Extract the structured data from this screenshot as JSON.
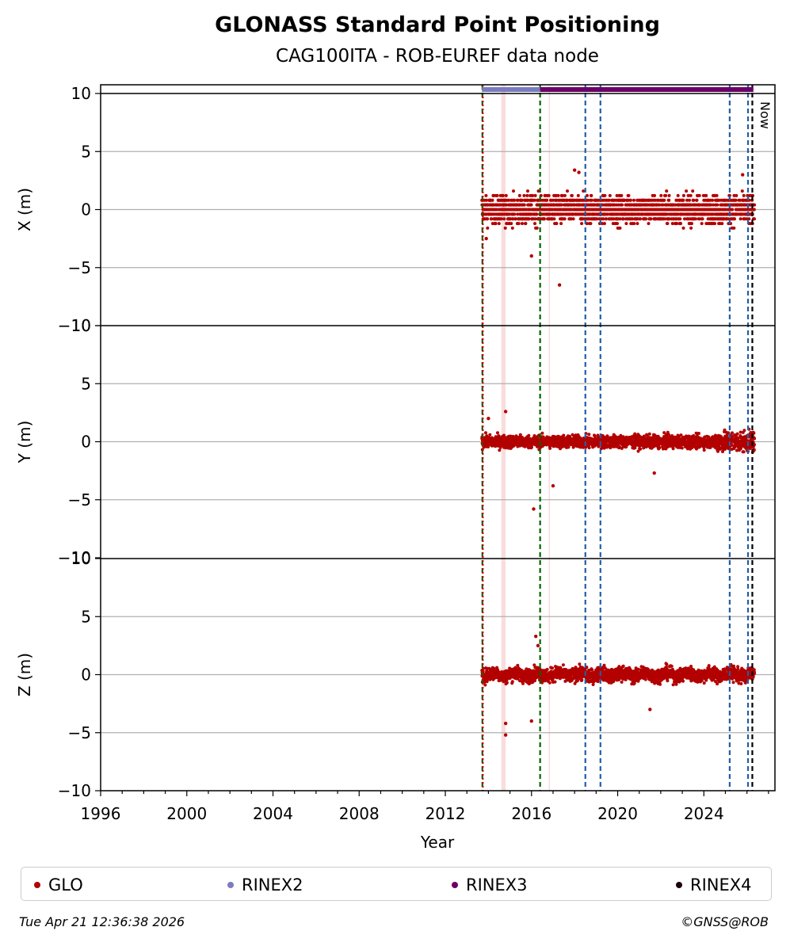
{
  "title": "GLONASS Standard Point Positioning",
  "subtitle": "CAG100ITA - ROB-EUREF data node",
  "footer_left": "Tue Apr 21 12:36:38 2026",
  "footer_right": "©GNSS@ROB",
  "legend": [
    {
      "label": "GLO",
      "color": "#b30000"
    },
    {
      "label": "RINEX2",
      "color": "#7b7bbf"
    },
    {
      "label": "RINEX3",
      "color": "#6b0066"
    },
    {
      "label": "RINEX4",
      "color": "#1a0010"
    }
  ],
  "chart_data": {
    "type": "scatter",
    "xlabel": "Year",
    "xlim": [
      1996,
      2027.3
    ],
    "x_ticks": [
      "1996",
      "2000",
      "2004",
      "2008",
      "2012",
      "2016",
      "2020",
      "2024"
    ],
    "ylim": [
      -10,
      10
    ],
    "y_ticks": [
      "−10",
      "−5",
      "0",
      "5",
      "10"
    ],
    "grid": "horizontal",
    "legend_position": "bottom",
    "now_label": "Now",
    "panels": [
      {
        "ylabel": "X (m)",
        "typical_spread": 1.1,
        "range": [
          -3.0,
          2.0
        ],
        "outliers": [
          [
            2017.3,
            -6.5
          ],
          [
            2016.0,
            -4.0
          ],
          [
            2013.9,
            -2.5
          ],
          [
            2018.0,
            3.4
          ],
          [
            2018.2,
            3.2
          ],
          [
            2025.8,
            3.0
          ]
        ]
      },
      {
        "ylabel": "Y (m)",
        "typical_spread": 0.5,
        "range": [
          -2.0,
          2.0
        ],
        "outliers": [
          [
            2016.1,
            -5.8
          ],
          [
            2017.0,
            -3.8
          ],
          [
            2014.8,
            2.6
          ],
          [
            2021.7,
            -2.7
          ],
          [
            2014.0,
            2.0
          ]
        ]
      },
      {
        "ylabel": "Z (m)",
        "typical_spread": 0.55,
        "range": [
          -2.5,
          2.5
        ],
        "outliers": [
          [
            2014.8,
            -5.2
          ],
          [
            2014.8,
            -4.2
          ],
          [
            2016.0,
            -4.0
          ],
          [
            2016.2,
            3.3
          ],
          [
            2016.3,
            2.5
          ],
          [
            2021.5,
            -3.0
          ]
        ]
      }
    ],
    "glo_data_start": 2013.7,
    "rinex_bars": [
      {
        "name": "RINEX2",
        "from": 2013.7,
        "to": 2016.4,
        "color": "#7b7bbf"
      },
      {
        "name": "RINEX3",
        "from": 2016.4,
        "to": 2026.3,
        "color": "#6b0066"
      }
    ],
    "events": [
      {
        "year": 2013.72,
        "color": "#006400",
        "style": "dashed"
      },
      {
        "year": 2013.74,
        "color": "#cc0000",
        "style": "dotted"
      },
      {
        "year": 2016.4,
        "color": "#006400",
        "style": "dashed"
      },
      {
        "year": 2018.5,
        "color": "#1f5fa8",
        "style": "dashed"
      },
      {
        "year": 2019.2,
        "color": "#1f5fa8",
        "style": "dashed"
      },
      {
        "year": 2025.2,
        "color": "#1f5fa8",
        "style": "dashed"
      },
      {
        "year": 2026.05,
        "color": "#1f5fa8",
        "style": "dashed"
      },
      {
        "year": 2026.25,
        "color": "#000000",
        "style": "dashed"
      }
    ],
    "shaded_periods": [
      {
        "from": 2014.6,
        "to": 2014.8,
        "color": "#f4c6c6"
      },
      {
        "from": 2016.8,
        "to": 2016.85,
        "color": "#f4c6c6"
      }
    ]
  }
}
